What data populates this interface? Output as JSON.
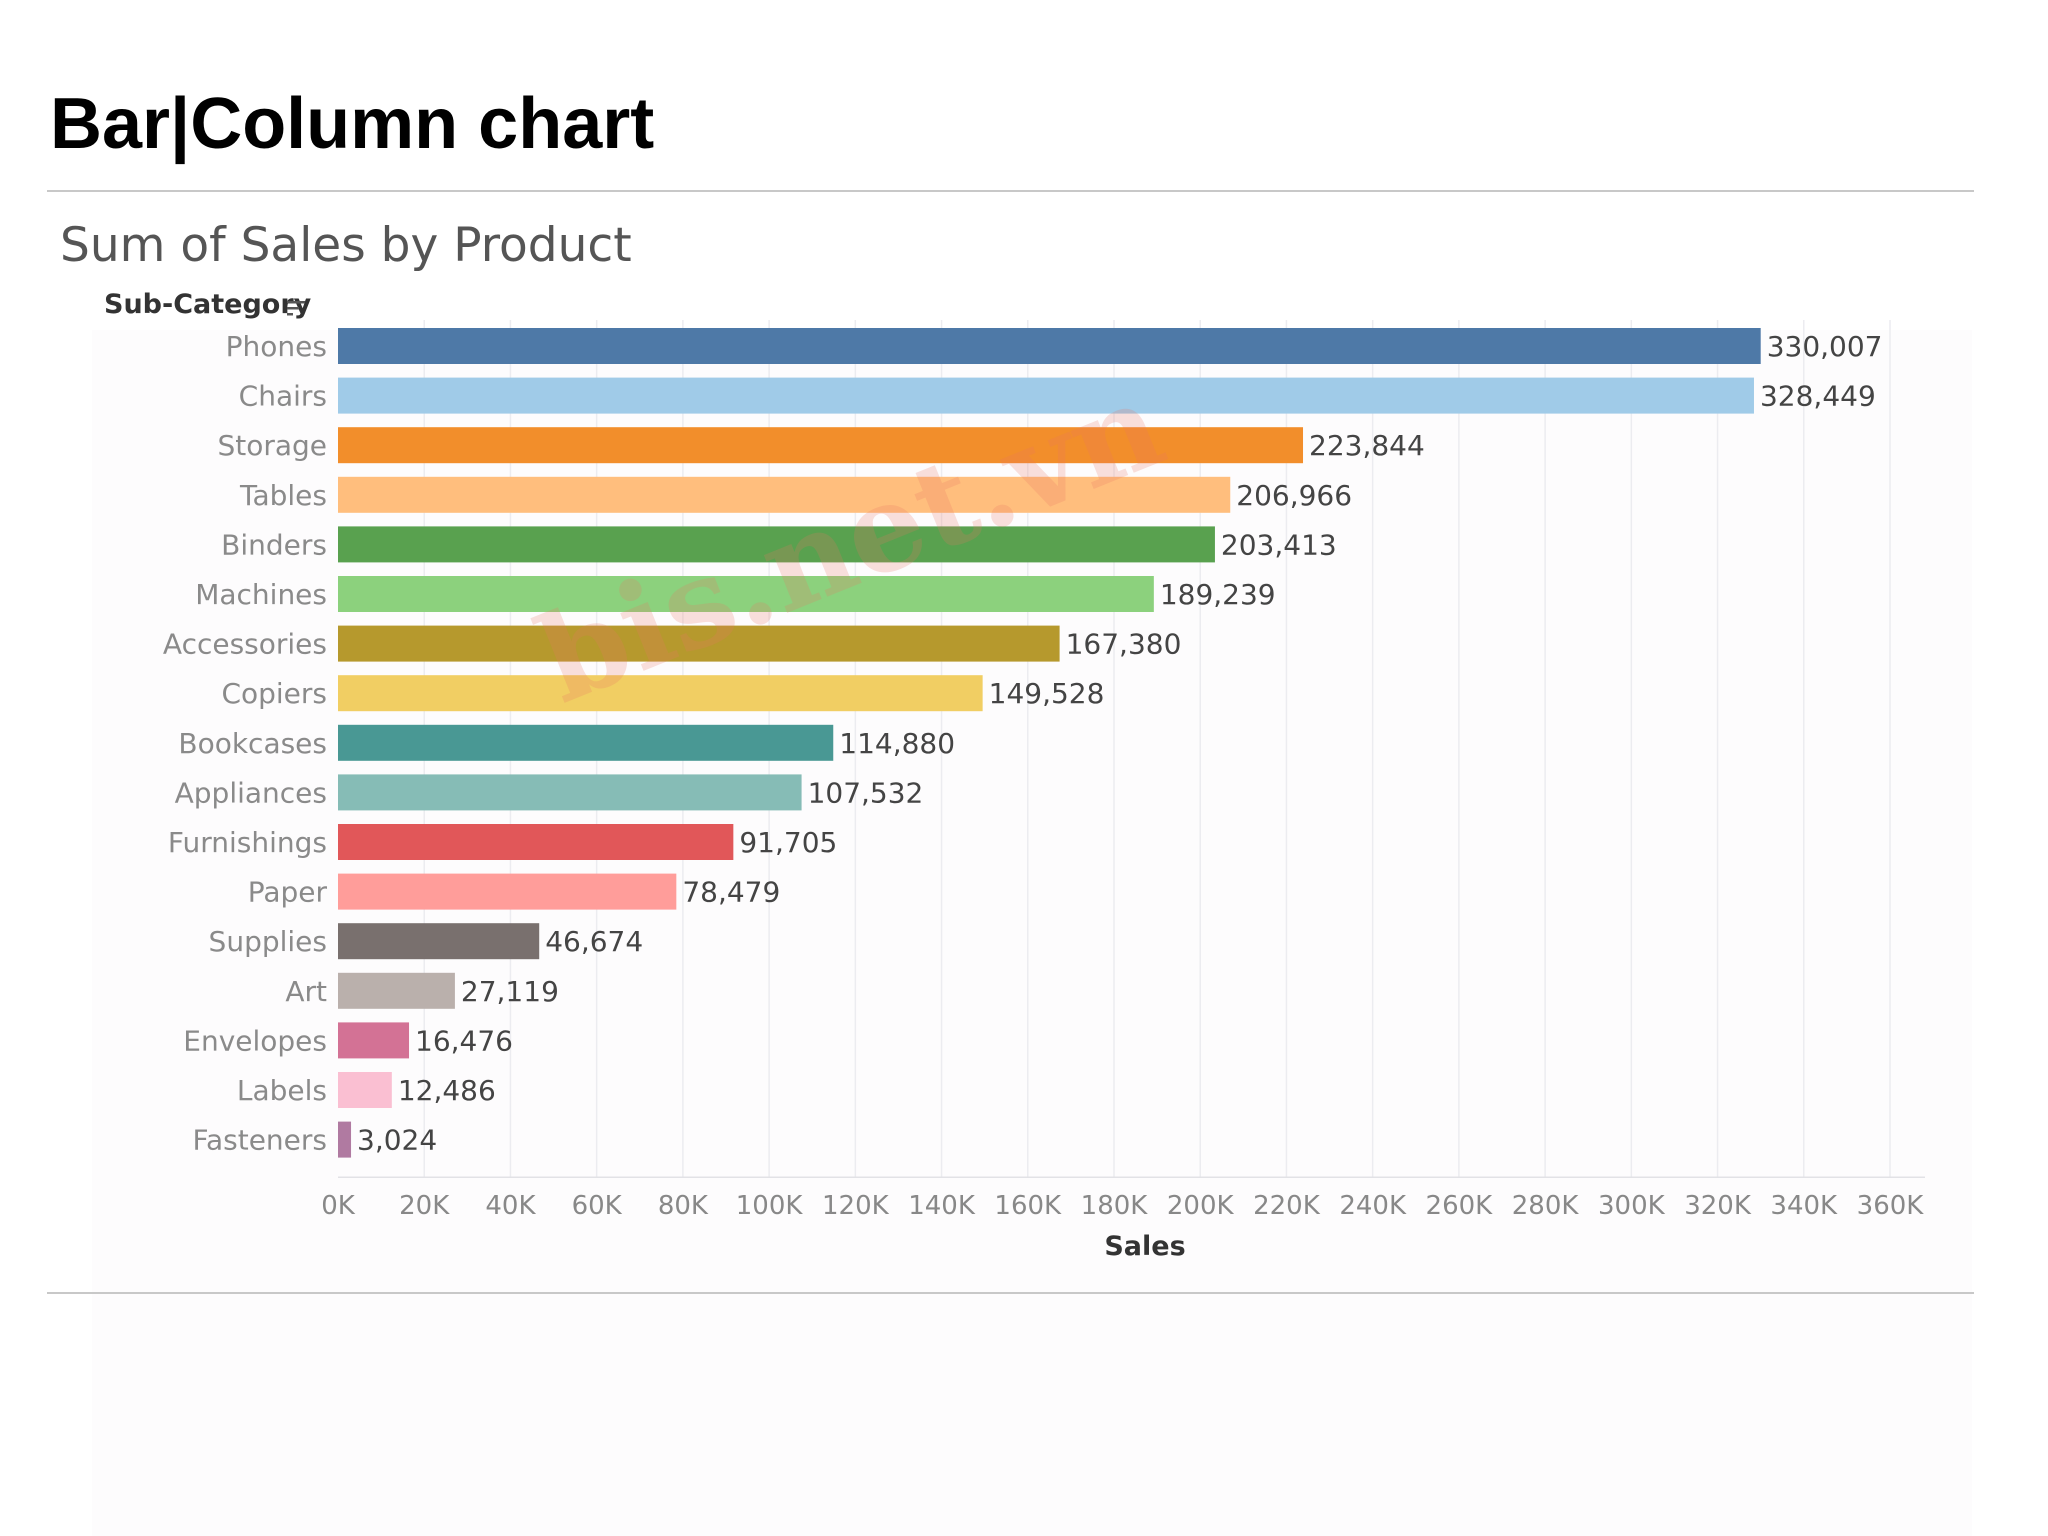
{
  "slide": {
    "title": "Bar|Column chart"
  },
  "watermark": "bis.net.vn",
  "chart_data": {
    "type": "bar",
    "orientation": "horizontal",
    "title": "Sum of Sales by Product",
    "category_header": "Sub-Category",
    "xlabel": "Sales",
    "ylabel": "Sub-Category",
    "xlim": [
      0,
      360000
    ],
    "grid": true,
    "tick_values": [
      0,
      20000,
      40000,
      60000,
      80000,
      100000,
      120000,
      140000,
      160000,
      180000,
      200000,
      220000,
      240000,
      260000,
      280000,
      300000,
      320000,
      340000,
      360000
    ],
    "ticks": [
      "0K",
      "20K",
      "40K",
      "60K",
      "80K",
      "100K",
      "120K",
      "140K",
      "160K",
      "180K",
      "200K",
      "220K",
      "240K",
      "260K",
      "280K",
      "300K",
      "320K",
      "340K",
      "360K"
    ],
    "categories": [
      "Phones",
      "Chairs",
      "Storage",
      "Tables",
      "Binders",
      "Machines",
      "Accessories",
      "Copiers",
      "Bookcases",
      "Appliances",
      "Furnishings",
      "Paper",
      "Supplies",
      "Art",
      "Envelopes",
      "Labels",
      "Fasteners"
    ],
    "values": [
      330007,
      328449,
      223844,
      206966,
      203413,
      189239,
      167380,
      149528,
      114880,
      107532,
      91705,
      78479,
      46674,
      27119,
      16476,
      12486,
      3024
    ],
    "value_labels": [
      "330,007",
      "328,449",
      "223,844",
      "206,966",
      "203,413",
      "189,239",
      "167,380",
      "149,528",
      "114,880",
      "107,532",
      "91,705",
      "78,479",
      "46,674",
      "27,119",
      "16,476",
      "12,486",
      "3,024"
    ],
    "colors": [
      "#4e79a7",
      "#a0cbe8",
      "#f28e2b",
      "#ffbe7d",
      "#59a14f",
      "#8cd17d",
      "#b6992d",
      "#f1ce63",
      "#499894",
      "#86bcb6",
      "#e15759",
      "#ff9d9a",
      "#79706e",
      "#bab0ac",
      "#d37295",
      "#fabfd2",
      "#b07aa1"
    ]
  }
}
